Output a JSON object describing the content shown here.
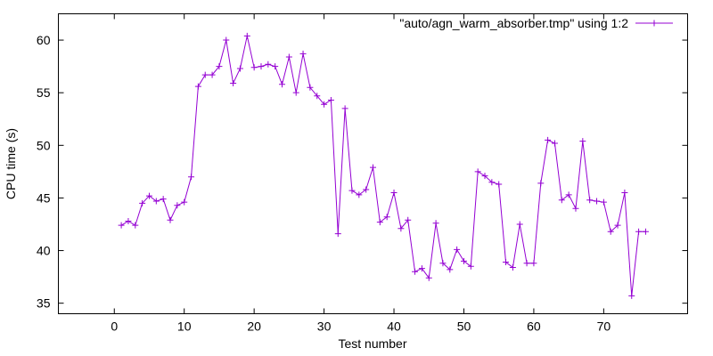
{
  "chart_data": {
    "type": "line",
    "title": "",
    "xlabel": "Test number",
    "ylabel": "CPU time (s)",
    "xlim": [
      -8,
      82
    ],
    "ylim": [
      34,
      62.5
    ],
    "xticks": [
      0,
      10,
      20,
      30,
      40,
      50,
      60,
      70
    ],
    "yticks": [
      35,
      40,
      45,
      50,
      55,
      60
    ],
    "grid": false,
    "legend_position": "top-right",
    "series": [
      {
        "name": "\"auto/agn_warm_absorber.tmp\" using 1:2",
        "color": "#9400d3",
        "marker": "plus",
        "x": [
          1,
          2,
          3,
          4,
          5,
          6,
          7,
          8,
          9,
          10,
          11,
          12,
          13,
          14,
          15,
          16,
          17,
          18,
          19,
          20,
          21,
          22,
          23,
          24,
          25,
          26,
          27,
          28,
          29,
          30,
          31,
          32,
          33,
          34,
          35,
          36,
          37,
          38,
          39,
          40,
          41,
          42,
          43,
          44,
          45,
          46,
          47,
          48,
          49,
          50,
          51,
          52,
          53,
          54,
          55,
          56,
          57,
          58,
          59,
          60,
          61,
          62,
          63,
          64,
          65,
          66,
          67,
          68,
          69,
          70,
          71,
          72,
          73,
          74,
          75,
          76
        ],
        "y": [
          42.4,
          42.8,
          42.4,
          44.5,
          45.2,
          44.7,
          44.9,
          42.9,
          44.3,
          44.6,
          47.0,
          55.6,
          56.7,
          56.7,
          57.5,
          60.0,
          55.9,
          57.3,
          60.4,
          57.4,
          57.5,
          57.7,
          57.5,
          55.8,
          58.4,
          55.0,
          58.7,
          55.5,
          54.7,
          53.9,
          54.3,
          41.6,
          53.5,
          45.7,
          45.3,
          45.8,
          47.9,
          42.7,
          43.2,
          45.5,
          42.1,
          42.9,
          38.0,
          38.3,
          37.4,
          42.6,
          38.8,
          38.2,
          40.1,
          39.0,
          38.5,
          47.5,
          47.1,
          46.5,
          46.3,
          38.9,
          38.4,
          42.5,
          38.8,
          38.8,
          46.4,
          50.5,
          50.2,
          44.8,
          45.3,
          44.0,
          50.4,
          44.8,
          44.7,
          44.6,
          41.8,
          42.4,
          45.5,
          35.7,
          41.8,
          41.8
        ]
      }
    ]
  }
}
